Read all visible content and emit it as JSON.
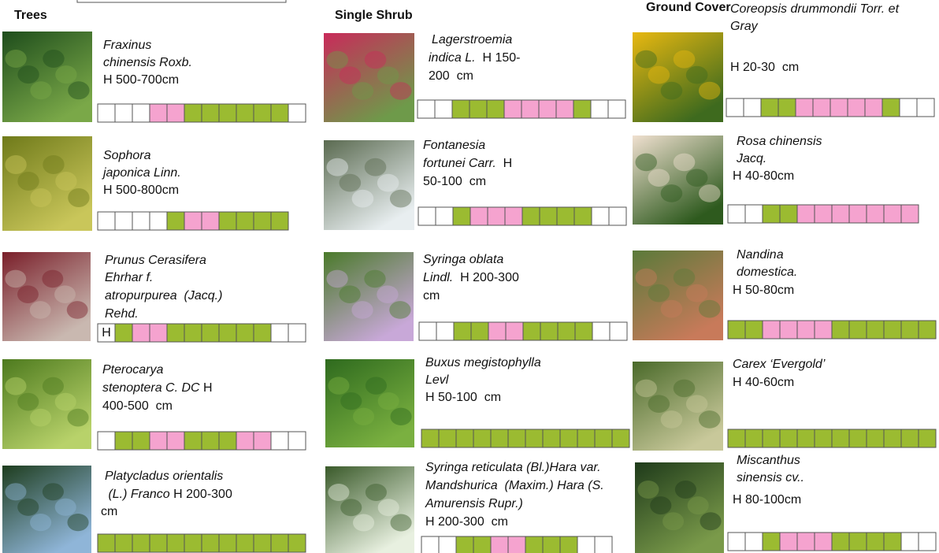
{
  "columns": [
    {
      "title": "Trees",
      "plants": [
        {
          "lines": [
            [
              "Fraxinus"
            ],
            [
              "chinensis Roxb."
            ],
            [
              "H 500-700cm"
            ]
          ]
        },
        {
          "lines": [
            [
              "Sophora"
            ],
            [
              "japonica Linn."
            ],
            [
              "H 500-800cm"
            ]
          ]
        },
        {
          "lines": [
            [
              "Prunus Cerasifera"
            ],
            [
              "Ehrhar f."
            ],
            [
              "atropurpurea  (Jacq.)"
            ],
            [
              "Rehd."
            ]
          ],
          "cell_label": "H"
        },
        {
          "lines": [
            [
              "Pterocarya"
            ],
            [
              "stenoptera C. DC",
              " H"
            ],
            [
              "400-500  cm"
            ]
          ]
        },
        {
          "lines": [
            [
              "Platycladus orientalis"
            ],
            [
              " (L.) Franco",
              " H 200-300"
            ],
            [
              "cm"
            ]
          ]
        }
      ]
    },
    {
      "title": "Single Shrub",
      "plants": [
        {
          "lines": [
            [
              "Lagerstroemia"
            ],
            [
              "indica L.",
              "  H 150-"
            ],
            [
              "200  cm"
            ]
          ]
        },
        {
          "lines": [
            [
              "Fontanesia"
            ],
            [
              "fortunei Carr.",
              "  H"
            ],
            [
              "50-100  cm"
            ]
          ]
        },
        {
          "lines": [
            [
              "Syringa oblata"
            ],
            [
              "Lindl.",
              "  H 200-300"
            ],
            [
              "cm"
            ]
          ]
        },
        {
          "lines": [
            [
              "Buxus megistophylla"
            ],
            [
              "Levl"
            ],
            [
              "H 50-100  cm"
            ]
          ]
        },
        {
          "lines": [
            [
              "Syringa reticulata (Bl.)Hara var."
            ],
            [
              "Mandshurica  (Maxim.) Hara (S."
            ],
            [
              "Amurensis Rupr.)"
            ],
            [
              "H 200-300  cm"
            ]
          ]
        }
      ]
    },
    {
      "title": "Ground Cover",
      "plants": [
        {
          "lines": [
            [
              "Coreopsis drummondii Torr. et"
            ],
            [
              "Gray"
            ],
            [
              "H 20-30  cm"
            ]
          ]
        },
        {
          "lines": [
            [
              "Rosa chinensis"
            ],
            [
              "Jacq."
            ],
            [
              "H 40-80cm"
            ]
          ]
        },
        {
          "lines": [
            [
              "Nandina"
            ],
            [
              "domestica."
            ],
            [
              "H 50-80cm"
            ]
          ]
        },
        {
          "lines": [
            [
              "Carex ‘Evergold’"
            ],
            [
              "H 40-60cm"
            ]
          ]
        },
        {
          "lines": [
            [
              "Miscanthus"
            ],
            [
              "sinensis cv.."
            ],
            [
              "H 80-100cm"
            ]
          ]
        }
      ]
    }
  ]
}
